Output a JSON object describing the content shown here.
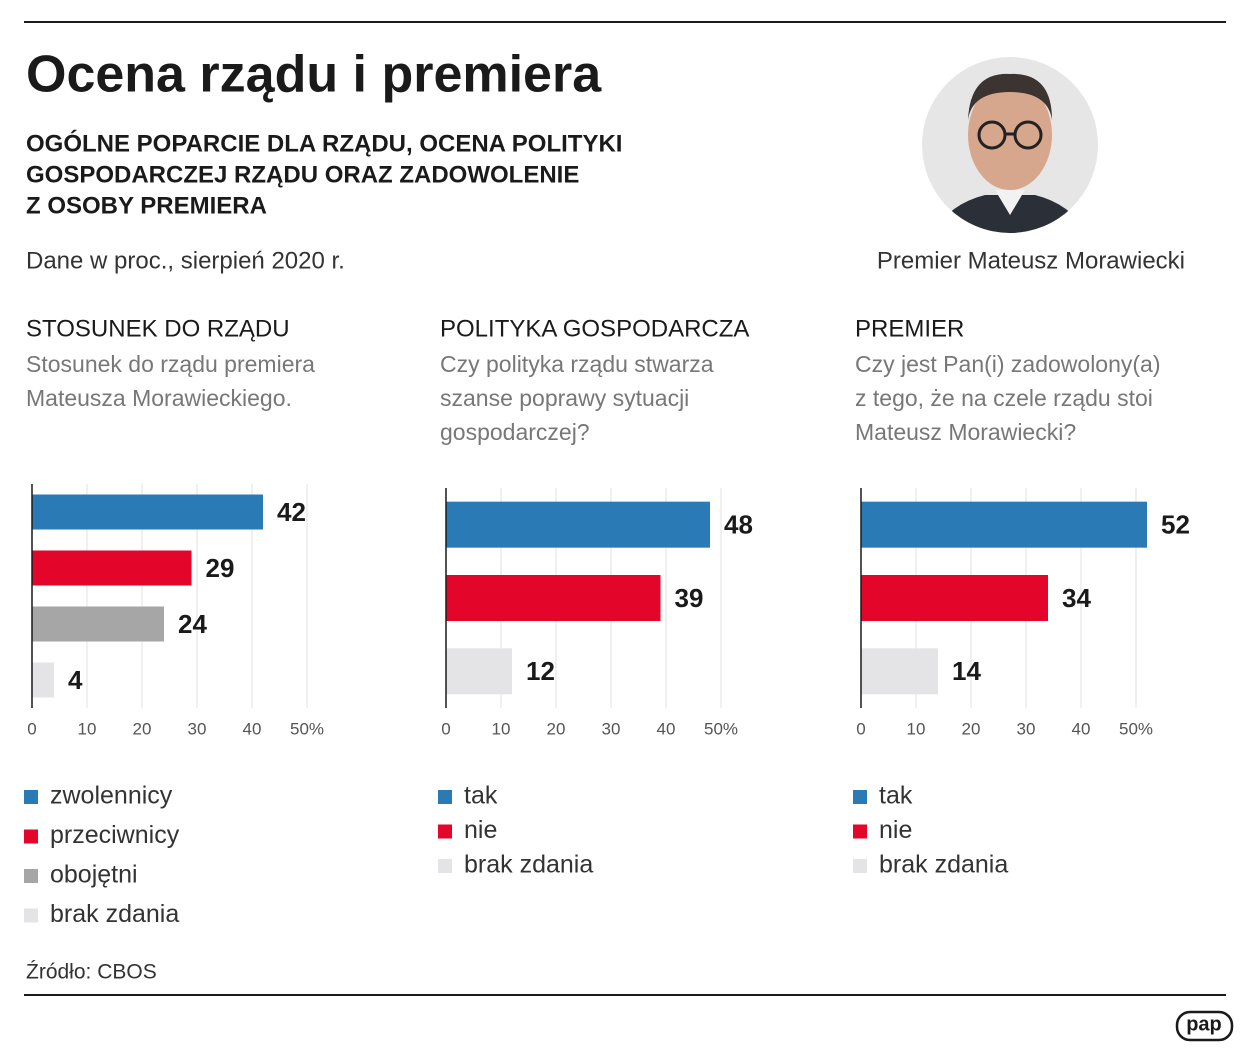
{
  "title": "Ocena rządu i premiera",
  "subtitle": [
    "OGÓLNE POPARCIE DLA RZĄDU, OCENA POLITYKI",
    "GOSPODARCZEJ RZĄDU ORAZ ZADOWOLENIE",
    "Z OSOBY PREMIERA"
  ],
  "note": "Dane w proc., sierpień 2020 r.",
  "photo_caption": "Premier Mateusz Morawiecki",
  "source": "Źródło: CBOS",
  "logo": "pap",
  "chart_data": [
    {
      "type": "barh",
      "title": "STOSUNEK DO RZĄDU",
      "question": [
        "Stosunek do rządu premiera",
        "Mateusza Morawieckiego."
      ],
      "categories": [
        "zwolennicy",
        "przeciwnicy",
        "obojętni",
        "brak zdania"
      ],
      "values": [
        42,
        29,
        24,
        4
      ],
      "colors": [
        "#2a7ab5",
        "#e3052a",
        "#a6a6a6",
        "#e4e4e6"
      ],
      "xlim": [
        0,
        50
      ],
      "xticks": [
        0,
        10,
        20,
        30,
        40,
        {
          "value": 50,
          "label": "50%"
        }
      ],
      "grid": true
    },
    {
      "type": "barh",
      "title": "POLITYKA GOSPODARCZA",
      "question": [
        "Czy polityka rządu stwarza",
        "szanse poprawy sytuacji",
        "gospodarczej?"
      ],
      "categories": [
        "tak",
        "nie",
        "brak zdania"
      ],
      "values": [
        48,
        39,
        12
      ],
      "colors": [
        "#2a7ab5",
        "#e3052a",
        "#e4e4e6"
      ],
      "xlim": [
        0,
        50
      ],
      "xticks": [
        0,
        10,
        20,
        30,
        40,
        {
          "value": 50,
          "label": "50%"
        }
      ],
      "grid": true
    },
    {
      "type": "barh",
      "title": "PREMIER",
      "question": [
        "Czy jest Pan(i) zadowolony(a)",
        "z tego, że na czele rządu stoi",
        "Mateusz Morawiecki?"
      ],
      "categories": [
        "tak",
        "nie",
        "brak zdania"
      ],
      "values": [
        52,
        34,
        14
      ],
      "colors": [
        "#2a7ab5",
        "#e3052a",
        "#e4e4e6"
      ],
      "xlim": [
        0,
        50
      ],
      "xticks": [
        0,
        10,
        20,
        30,
        40,
        {
          "value": 50,
          "label": "50%"
        }
      ],
      "grid": true
    }
  ]
}
